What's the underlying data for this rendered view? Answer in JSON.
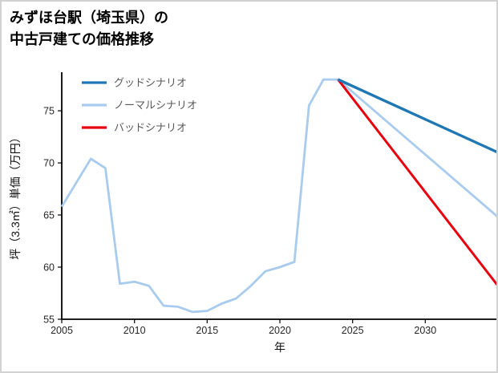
{
  "title": {
    "line1": "みずほ台駅（埼玉県）の",
    "line2": "中古戸建ての価格推移"
  },
  "chart_data": {
    "type": "line",
    "title": "みずほ台駅（埼玉県）の中古戸建ての価格推移",
    "xlabel": "年",
    "ylabel": "坪（3.3㎡）単価（万円）",
    "xlim": [
      2005,
      2035
    ],
    "ylim": [
      55,
      78.7
    ],
    "xticks": [
      2005,
      2010,
      2015,
      2020,
      2025,
      2030
    ],
    "yticks": [
      55,
      60,
      65,
      70,
      75
    ],
    "grid": false,
    "legend_position": "upper-left",
    "series": [
      {
        "name": "グッドシナリオ",
        "color": "#1f77b4",
        "width": 3.4,
        "x": [
          2024,
          2035
        ],
        "y": [
          78.0,
          71.0
        ]
      },
      {
        "name": "ノーマルシナリオ",
        "color": "#a8cbee",
        "width": 2.8,
        "x": [
          2005,
          2006,
          2007,
          2008,
          2009,
          2010,
          2011,
          2012,
          2013,
          2014,
          2015,
          2016,
          2017,
          2018,
          2019,
          2020,
          2021,
          2022,
          2023,
          2024,
          2035
        ],
        "y": [
          65.8,
          68.1,
          70.4,
          69.5,
          58.4,
          58.6,
          58.2,
          56.3,
          56.2,
          55.7,
          55.8,
          56.5,
          57.0,
          58.2,
          59.6,
          60.0,
          60.5,
          75.5,
          78.0,
          78.0,
          64.8
        ]
      },
      {
        "name": "バッドシナリオ",
        "color": "#e8000d",
        "width": 3.0,
        "x": [
          2024,
          2035
        ],
        "y": [
          78.0,
          58.2
        ]
      }
    ]
  }
}
